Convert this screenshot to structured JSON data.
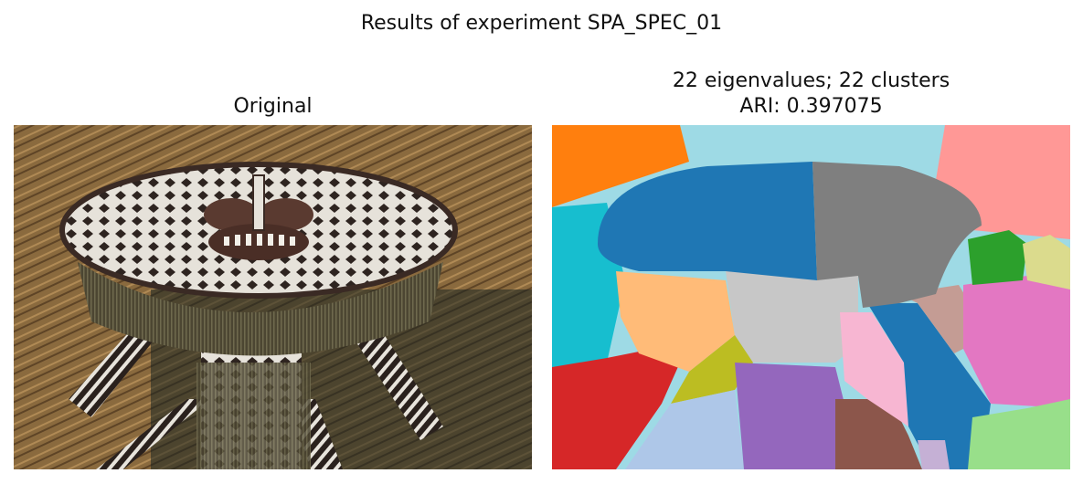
{
  "figure": {
    "suptitle": "Results of experiment SPA_SPEC_01"
  },
  "panels": {
    "original": {
      "title": "Original",
      "image_icon": "tribal-mask-photo"
    },
    "segmentation": {
      "title_line1": "22 eigenvalues; 22 clusters",
      "title_line2": "ARI: 0.397075",
      "image_icon": "segmentation-cluster-map"
    }
  },
  "colors": {
    "thatch": "#8a6a3e",
    "mask_dark": "#3a2a24",
    "cluster_palette": [
      "#1f77b4",
      "#ff7f0e",
      "#2ca02c",
      "#d62728",
      "#9467bd",
      "#8c564b",
      "#e377c2",
      "#7f7f7f",
      "#bcbd22",
      "#17becf",
      "#aec7e8",
      "#ffbb78",
      "#98df8a",
      "#ff9896",
      "#c5b0d5",
      "#c49c94",
      "#f7b6d2",
      "#c7c7c7",
      "#dbdb8d",
      "#9edae5"
    ]
  }
}
